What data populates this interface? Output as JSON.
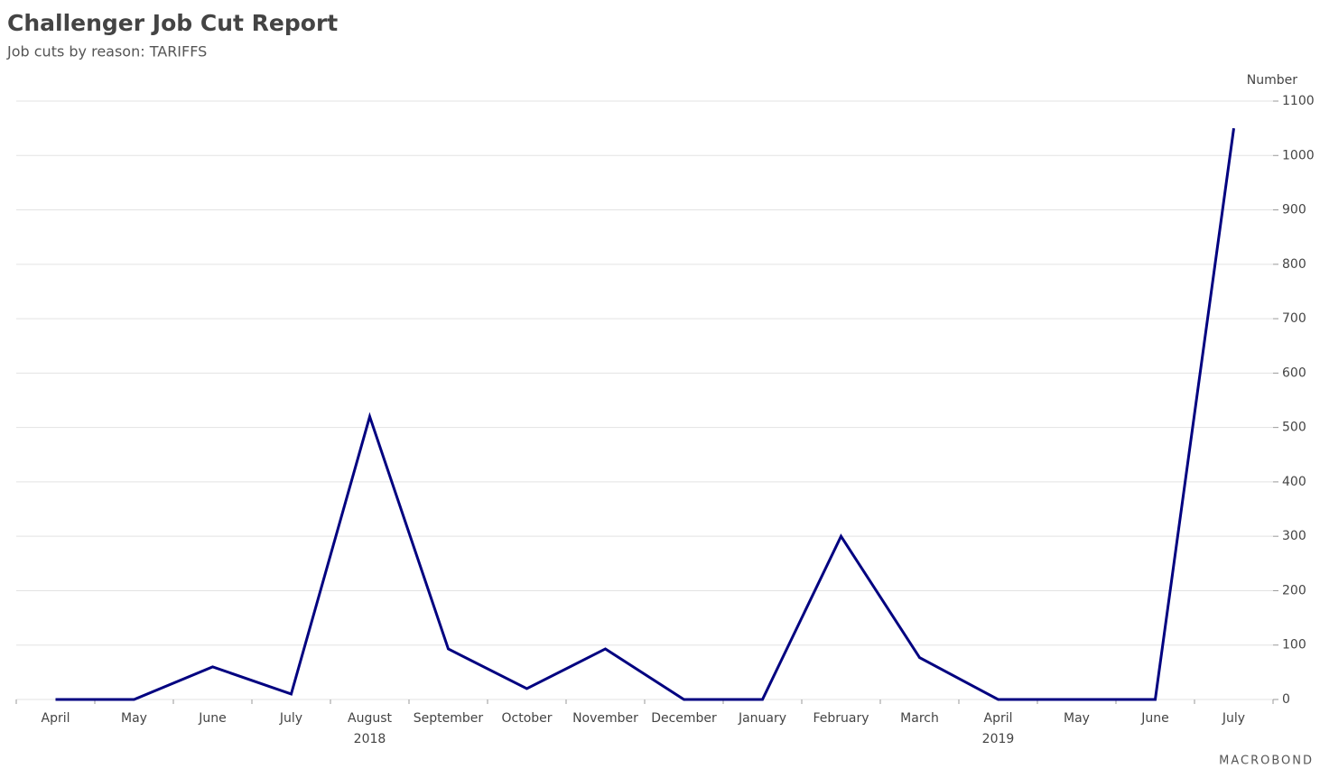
{
  "chart_data": {
    "type": "line",
    "title": "Challenger Job Cut Report",
    "subtitle": "Job cuts by reason: TARIFFS",
    "y_axis_label": "Number",
    "branding": "MACROBOND",
    "categories": [
      "April",
      "May",
      "June",
      "July",
      "August",
      "September",
      "October",
      "November",
      "December",
      "January",
      "February",
      "March",
      "April",
      "May",
      "June",
      "July"
    ],
    "category_years": [
      null,
      null,
      null,
      null,
      "2018",
      null,
      null,
      null,
      null,
      null,
      null,
      null,
      "2019",
      null,
      null,
      null
    ],
    "series": [
      {
        "name": "Tariffs",
        "color": "#000080",
        "values": [
          0,
          0,
          60,
          10,
          520,
          93,
          20,
          93,
          0,
          0,
          300,
          77,
          0,
          0,
          0,
          1050
        ]
      }
    ],
    "ylim": [
      0,
      1100
    ],
    "yticks": [
      0,
      100,
      200,
      300,
      400,
      500,
      600,
      700,
      800,
      900,
      1000,
      1100
    ],
    "grid": true
  }
}
